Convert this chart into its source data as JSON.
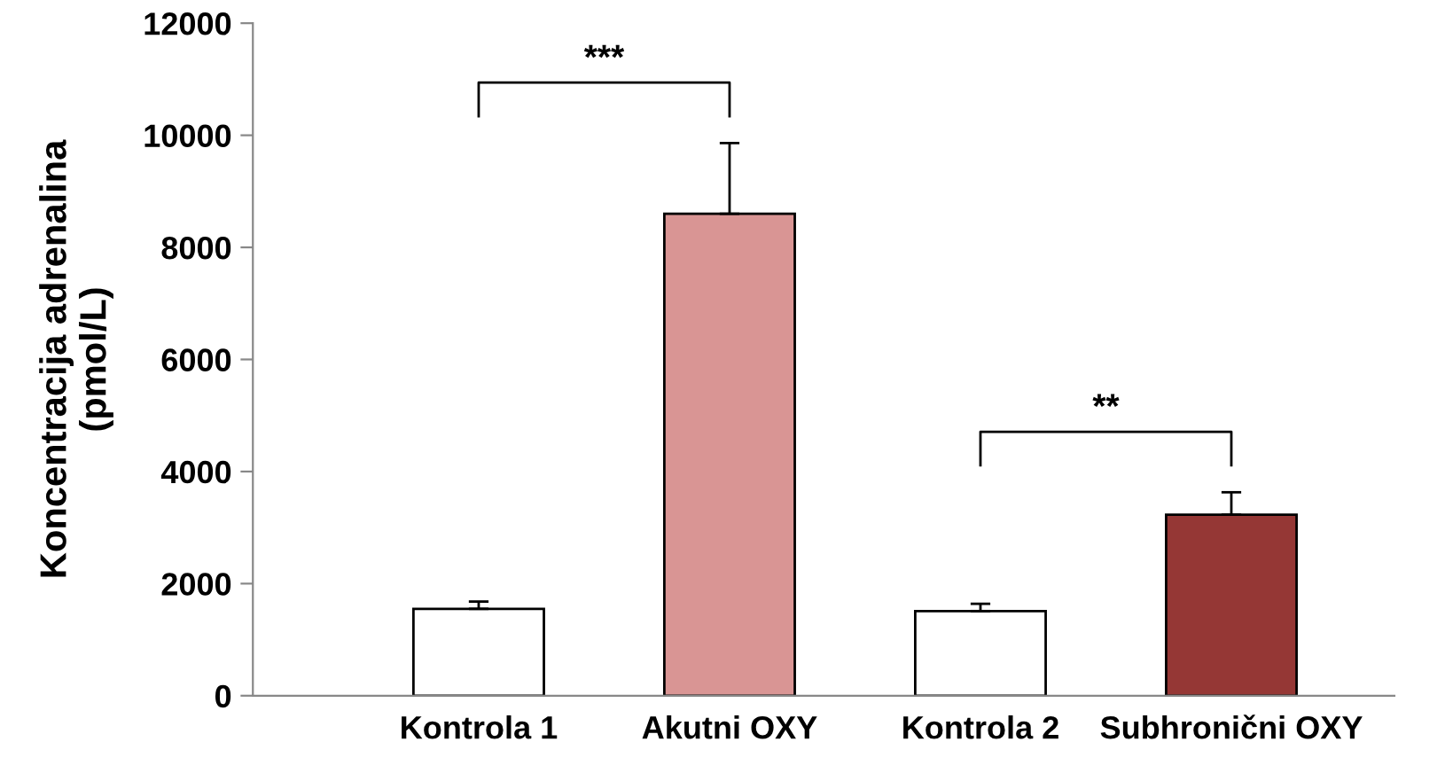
{
  "chart_data": {
    "type": "bar",
    "ylabel": "Koncentracija adrenalina\n(pmol/L)",
    "categories": [
      "Kontrola 1",
      "Akutni OXY",
      "Kontrola 2",
      "Subhronični OXY"
    ],
    "values": [
      1550,
      8600,
      1510,
      3230
    ],
    "errors": [
      [
        1550,
        1680
      ],
      [
        8600,
        9860
      ],
      [
        1510,
        1640
      ],
      [
        3230,
        3630
      ]
    ],
    "colors": [
      "#ffffff",
      "#d99594",
      "#ffffff",
      "#953735"
    ],
    "ylim": [
      0,
      12000
    ],
    "yticks": [
      0,
      2000,
      4000,
      6000,
      8000,
      10000,
      12000
    ],
    "grid": false,
    "annotations": [
      "***",
      "**"
    ]
  }
}
